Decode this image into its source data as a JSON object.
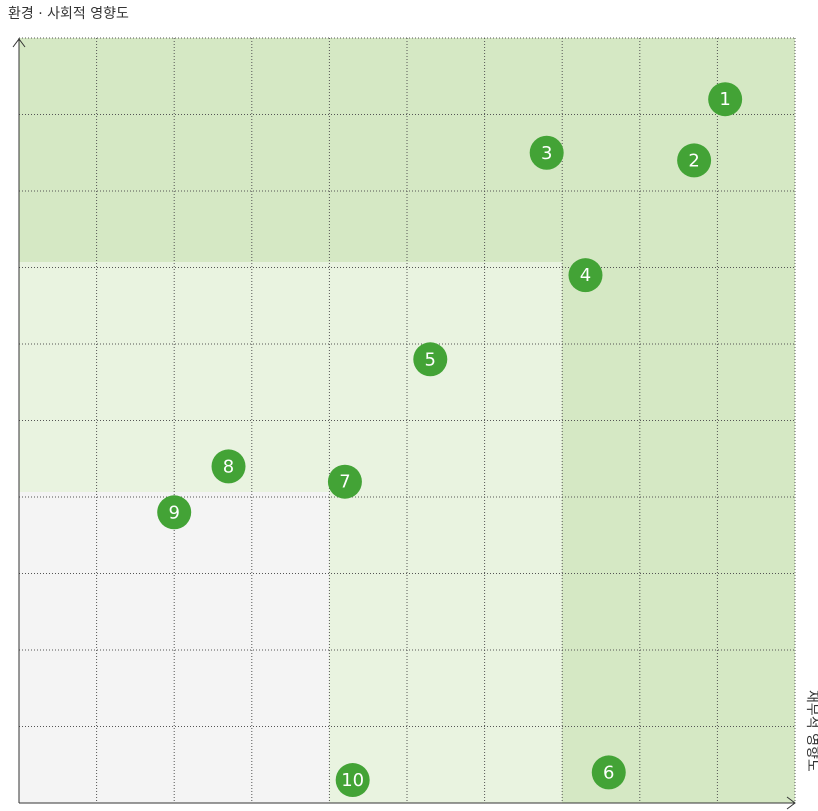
{
  "chart_data": {
    "type": "scatter",
    "xlabel": "재무적 영향도",
    "ylabel": "환경 · 사회적 영향도",
    "labels": [
      "1",
      "2",
      "3",
      "4",
      "5",
      "6",
      "7",
      "8",
      "9",
      "10"
    ],
    "x": [
      9.1,
      8.7,
      6.8,
      7.3,
      5.3,
      7.6,
      4.2,
      2.7,
      2.0,
      4.3
    ],
    "values": [
      9.2,
      8.4,
      8.5,
      6.9,
      5.8,
      0.4,
      4.2,
      4.4,
      3.8,
      0.3
    ],
    "color": "#43a336",
    "xlim": [
      0,
      10
    ],
    "ylim": [
      0,
      10
    ],
    "xticks": [
      0,
      1,
      2,
      3,
      4,
      5,
      6,
      7,
      8,
      9,
      10
    ],
    "yticks": [
      0,
      1,
      2,
      3,
      4,
      5,
      6,
      7,
      8,
      9,
      10
    ],
    "grid": true
  }
}
